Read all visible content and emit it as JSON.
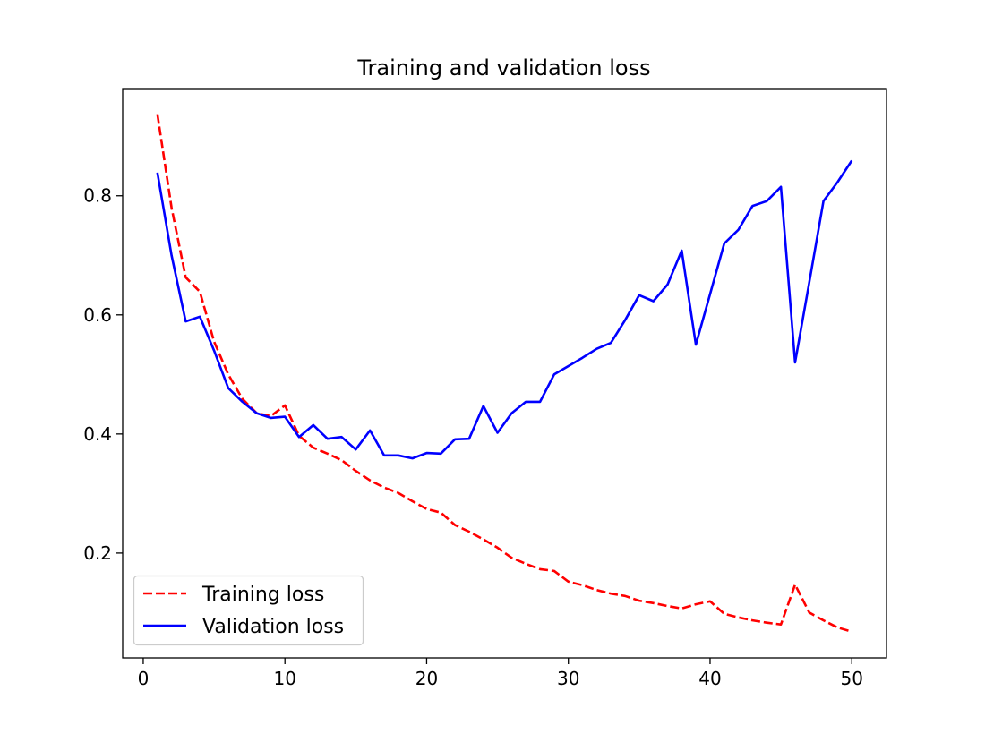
{
  "chart_data": {
    "type": "line",
    "title": "Training and validation loss",
    "xlabel": "",
    "ylabel": "",
    "xlim": [
      -1.45,
      52.45
    ],
    "ylim": [
      0.024,
      0.98
    ],
    "xticks": [
      0,
      10,
      20,
      30,
      40,
      50
    ],
    "xtick_labels": [
      "0",
      "10",
      "20",
      "30",
      "40",
      "50"
    ],
    "yticks": [
      0.2,
      0.4,
      0.6,
      0.8
    ],
    "ytick_labels": [
      "0.2",
      "0.4",
      "0.6",
      "0.8"
    ],
    "grid": false,
    "legend_placement": "lower-left",
    "x": [
      1,
      2,
      3,
      4,
      5,
      6,
      7,
      8,
      9,
      10,
      11,
      12,
      13,
      14,
      15,
      16,
      17,
      18,
      19,
      20,
      21,
      22,
      23,
      24,
      25,
      26,
      27,
      28,
      29,
      30,
      31,
      32,
      33,
      34,
      35,
      36,
      37,
      38,
      39,
      40,
      41,
      42,
      43,
      44,
      45,
      46,
      47,
      48,
      49,
      50
    ],
    "series": [
      {
        "name": "Training loss",
        "color": "#ff0000",
        "style": "dashed",
        "values": [
          0.937,
          0.78,
          0.663,
          0.639,
          0.555,
          0.5,
          0.459,
          0.435,
          0.43,
          0.448,
          0.397,
          0.377,
          0.367,
          0.356,
          0.338,
          0.322,
          0.31,
          0.301,
          0.287,
          0.274,
          0.268,
          0.247,
          0.236,
          0.223,
          0.209,
          0.192,
          0.182,
          0.173,
          0.17,
          0.152,
          0.146,
          0.138,
          0.132,
          0.128,
          0.12,
          0.116,
          0.111,
          0.107,
          0.114,
          0.119,
          0.098,
          0.092,
          0.087,
          0.083,
          0.08,
          0.147,
          0.1,
          0.087,
          0.075,
          0.068
        ]
      },
      {
        "name": "Validation loss",
        "color": "#0000ff",
        "style": "solid",
        "values": [
          0.839,
          0.7,
          0.589,
          0.597,
          0.54,
          0.477,
          0.454,
          0.435,
          0.427,
          0.429,
          0.395,
          0.415,
          0.392,
          0.395,
          0.374,
          0.406,
          0.364,
          0.364,
          0.359,
          0.368,
          0.367,
          0.391,
          0.392,
          0.447,
          0.402,
          0.435,
          0.454,
          0.454,
          0.5,
          0.514,
          0.528,
          0.543,
          0.553,
          0.591,
          0.633,
          0.623,
          0.651,
          0.708,
          0.55,
          0.635,
          0.72,
          0.743,
          0.783,
          0.791,
          0.815,
          0.52,
          0.655,
          0.791,
          0.823,
          0.859
        ]
      }
    ]
  }
}
